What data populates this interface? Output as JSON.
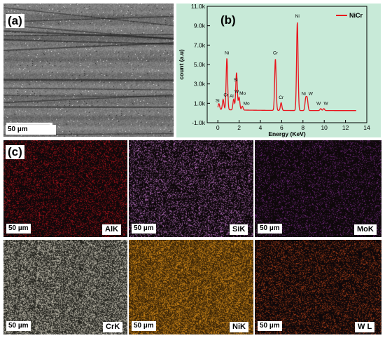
{
  "panel_a": {
    "letter": "(a)",
    "scale_bar": "50 µm"
  },
  "panel_b": {
    "letter": "(b)",
    "chart_data": {
      "type": "line",
      "series": [
        {
          "name": "NiCr",
          "color": "#e8141c"
        }
      ],
      "xlabel": "Energy (KeV)",
      "ylabel": "count (a.u)",
      "xlim": [
        -1,
        14
      ],
      "ylim": [
        -1000,
        11000
      ],
      "x_ticks": [
        "0",
        "2",
        "4",
        "6",
        "8",
        "10",
        "12",
        "14"
      ],
      "y_ticks": [
        "-1.0k",
        "1.0k",
        "3.0k",
        "5.0k",
        "7.0k",
        "9.0k",
        "11.0k"
      ],
      "peaks": [
        {
          "label": "Si",
          "x": 0.1,
          "y": 600
        },
        {
          "label": "Cr",
          "x": 0.5,
          "y": 1050
        },
        {
          "label": "Ni",
          "x": 0.85,
          "y": 5300
        },
        {
          "label": "Al",
          "x": 1.49,
          "y": 1100
        },
        {
          "label": "Si",
          "x": 1.74,
          "y": 2300
        },
        {
          "label": "W",
          "x": 1.78,
          "y": 1700
        },
        {
          "label": "Mo",
          "x": 2.0,
          "y": 1300
        },
        {
          "label": "Mo",
          "x": 2.3,
          "y": 400
        },
        {
          "label": "Cr",
          "x": 5.41,
          "y": 5300
        },
        {
          "label": "Cr",
          "x": 5.95,
          "y": 800
        },
        {
          "label": "Ni",
          "x": 7.47,
          "y": 9100
        },
        {
          "label": "Ni",
          "x": 8.26,
          "y": 1200
        },
        {
          "label": "W",
          "x": 8.4,
          "y": 1200
        },
        {
          "label": "W",
          "x": 9.67,
          "y": 200
        },
        {
          "label": "W",
          "x": 9.96,
          "y": 200
        }
      ]
    }
  },
  "panel_c": {
    "letter": "(c)",
    "maps": [
      {
        "element": "AlK",
        "scale": "50 µm",
        "color": "#a8141c"
      },
      {
        "element": "SiK",
        "scale": "50 µm",
        "color": "#b06ab8"
      },
      {
        "element": "MoK",
        "scale": "50 µm",
        "color": "#7a2e88"
      },
      {
        "element": "CrK",
        "scale": "50 µm",
        "color": "#c8c4b4"
      },
      {
        "element": "NiK",
        "scale": "50 µm",
        "color": "#d48a18"
      },
      {
        "element": "W L",
        "scale": "50 µm",
        "color": "#a83e1a"
      }
    ]
  }
}
